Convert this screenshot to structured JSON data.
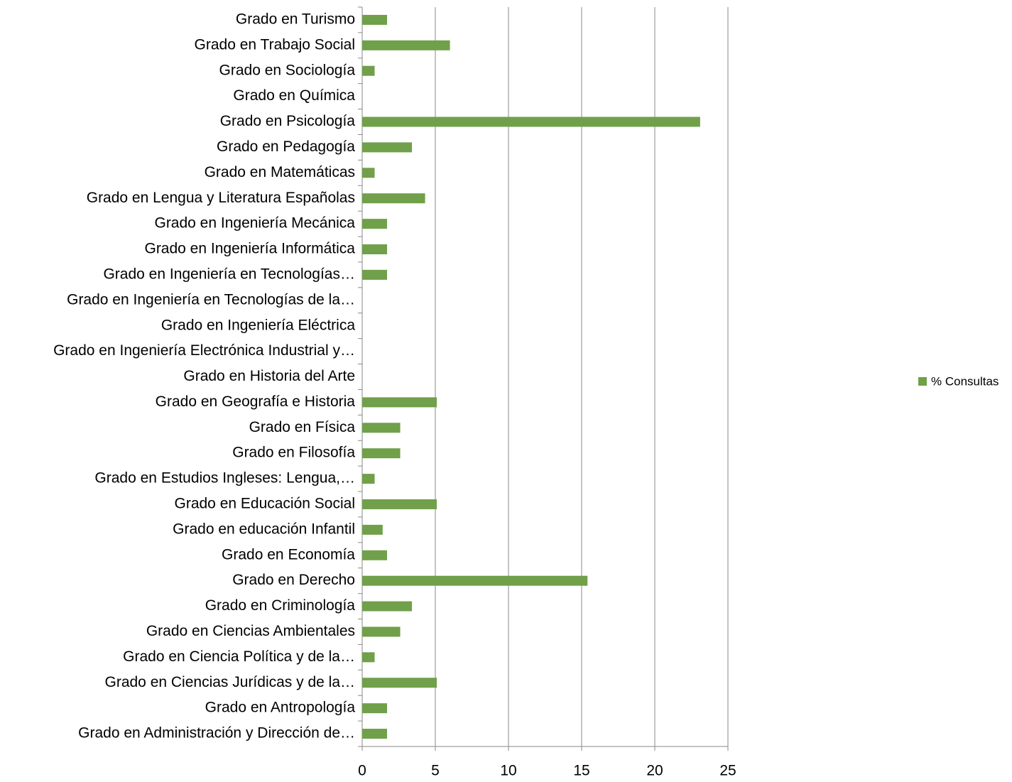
{
  "chart_data": {
    "type": "bar",
    "orientation": "horizontal",
    "categories": [
      "Grado en Turismo",
      "Grado en Trabajo Social",
      "Grado en Sociología",
      "Grado en Química",
      "Grado en Psicología",
      "Grado en Pedagogía",
      "Grado en Matemáticas",
      "Grado en Lengua y Literatura Españolas",
      "Grado en Ingeniería Mecánica",
      "Grado en Ingeniería Informática",
      "Grado en Ingeniería en Tecnologías…",
      "Grado en Ingeniería en Tecnologías de la…",
      "Grado en Ingeniería Eléctrica",
      "Grado en  Ingeniería Electrónica Industrial y…",
      "Grado en Historia del Arte",
      "Grado en Geografía e Historia",
      "Grado en Física",
      "Grado en Filosofía",
      "Grado en Estudios Ingleses: Lengua,…",
      "Grado en Educación Social",
      "Grado en educación Infantil",
      "Grado en Economía",
      "Grado en Derecho",
      "Grado en Criminología",
      "Grado en Ciencias Ambientales",
      "Grado en Ciencia Política y de la…",
      "Grado en Ciencias Jurídicas y de la…",
      "Grado en Antropología",
      "Grado en Administración y Dirección de…"
    ],
    "series": [
      {
        "name": "% Consultas",
        "color": "#70a04a",
        "values": [
          1.7,
          6.0,
          0.85,
          0,
          23.1,
          3.4,
          0.85,
          4.3,
          1.7,
          1.7,
          1.7,
          0,
          0,
          0,
          0,
          5.1,
          2.6,
          2.6,
          0.85,
          5.1,
          1.4,
          1.7,
          15.4,
          3.4,
          2.6,
          0.85,
          5.1,
          1.7,
          1.7
        ]
      }
    ],
    "xlim": [
      0,
      25
    ],
    "xticks": [
      0,
      5,
      10,
      15,
      20,
      25
    ],
    "grid": true,
    "legend": "right"
  }
}
